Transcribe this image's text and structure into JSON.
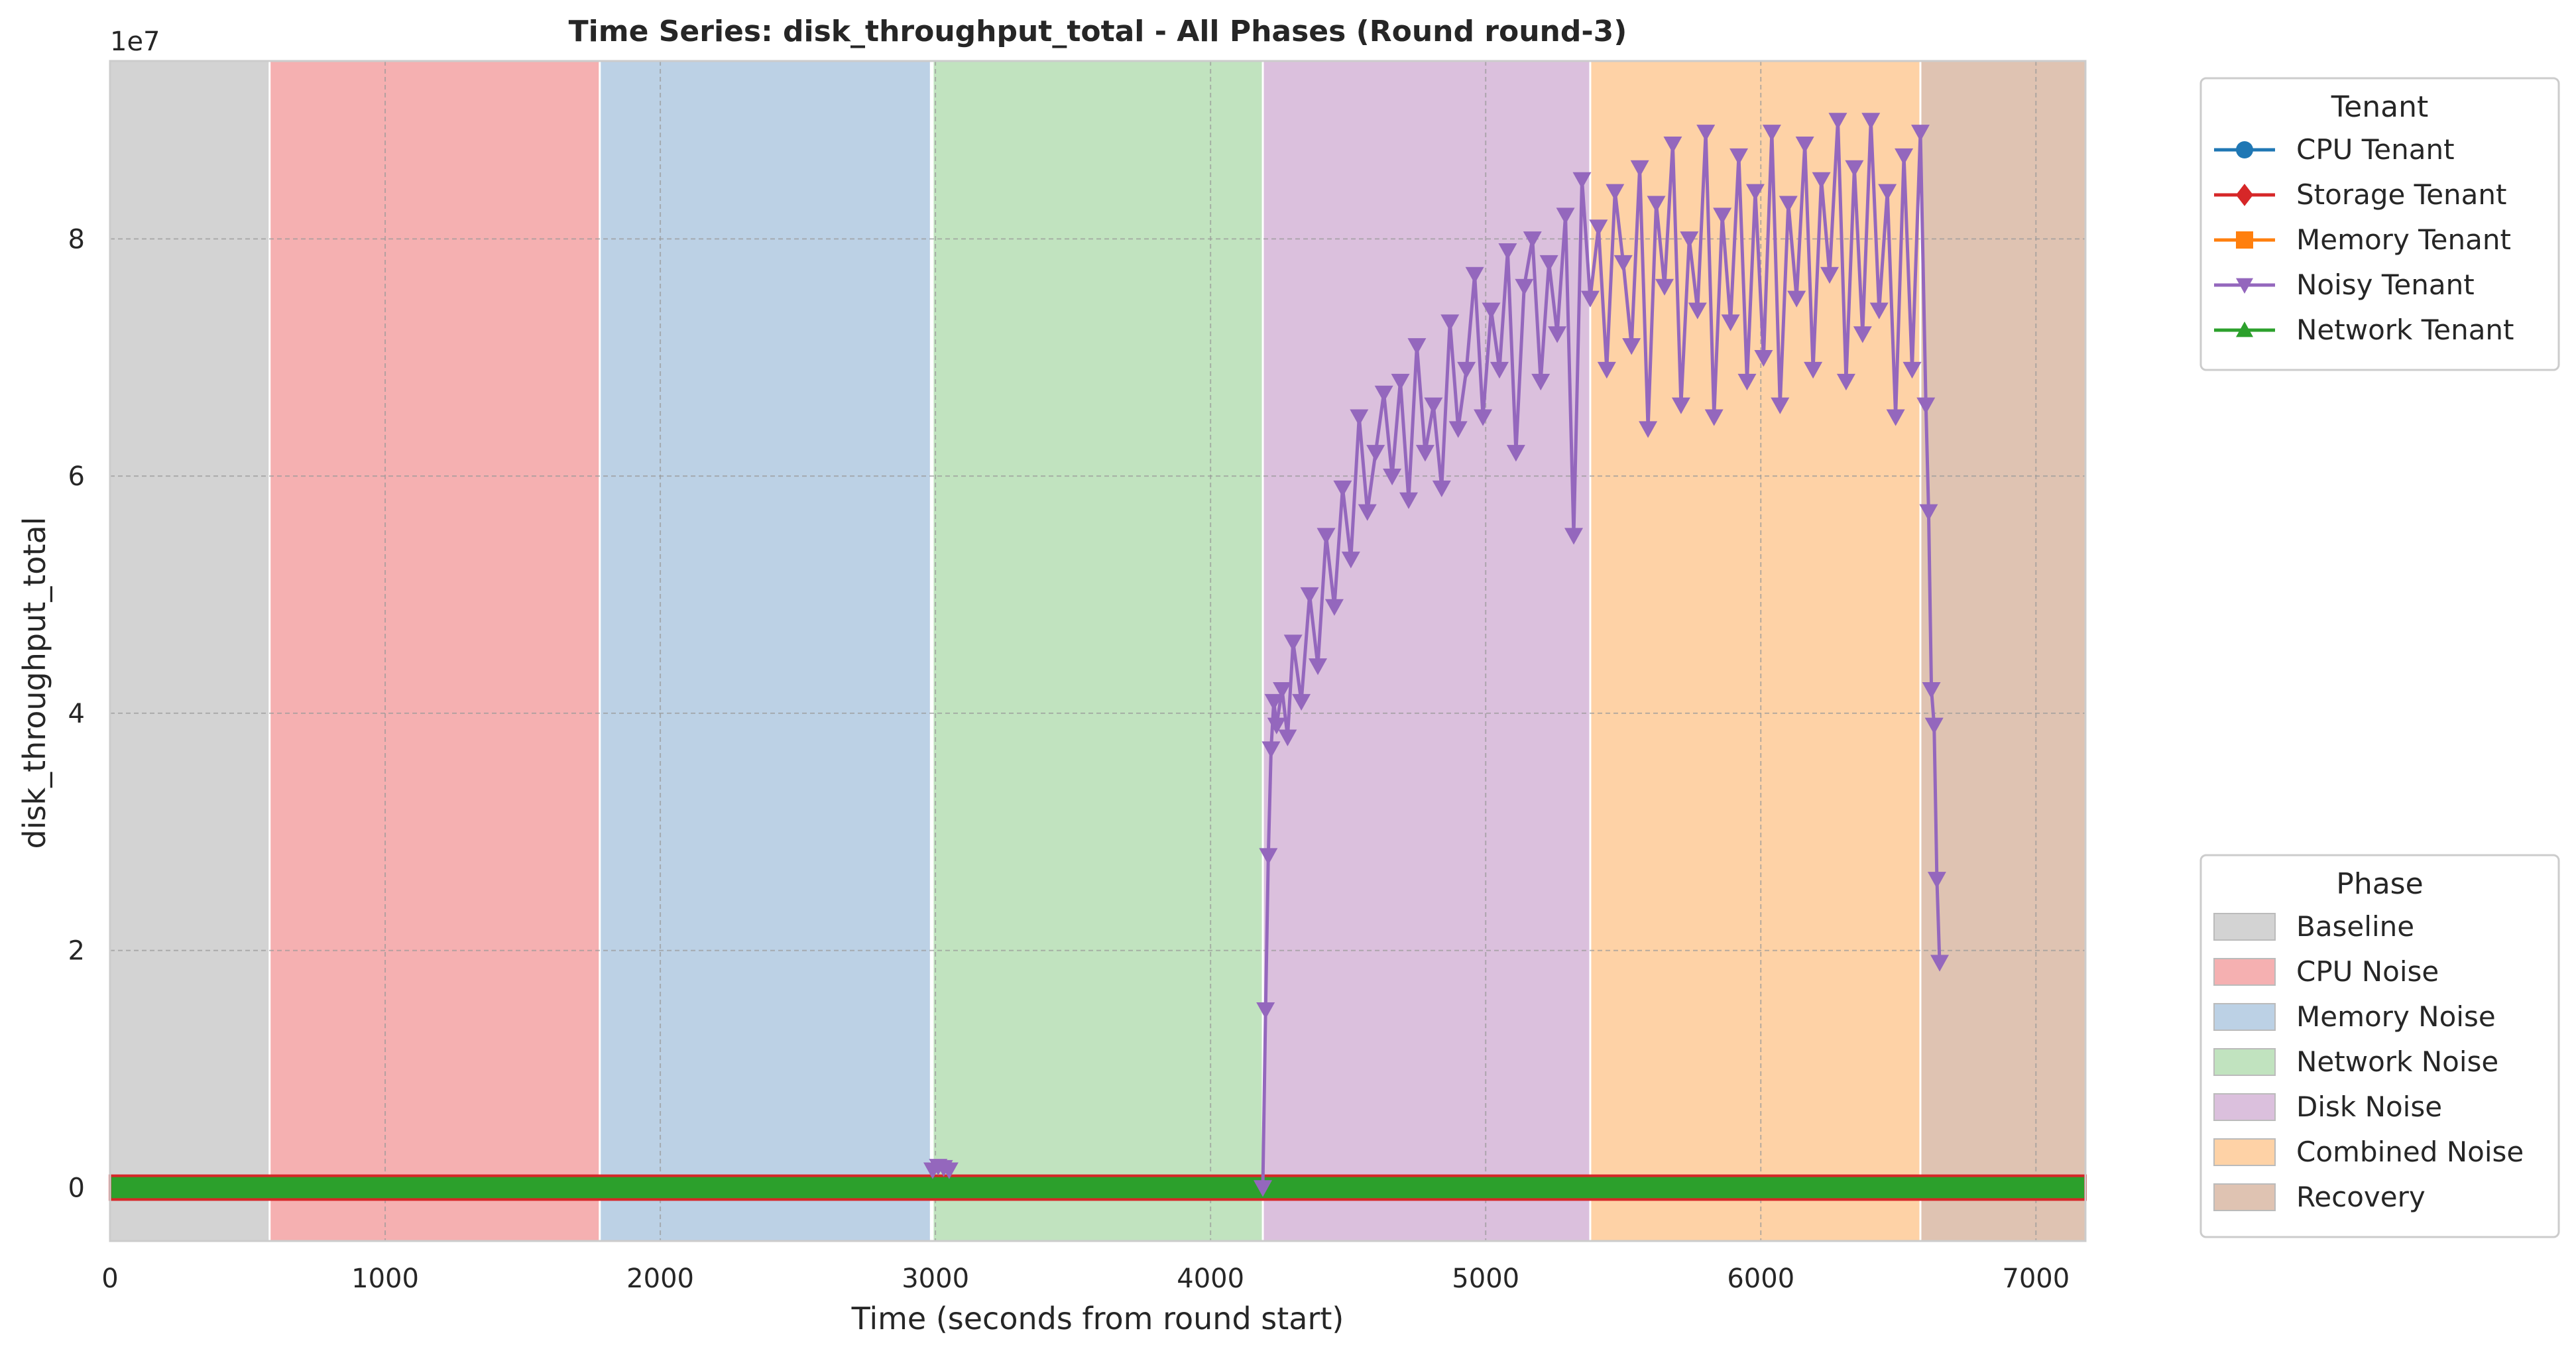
{
  "chart_data": {
    "type": "line",
    "title": "Time Series: disk_throughput_total - All Phases (Round round-3)",
    "xlabel": "Time (seconds from round start)",
    "ylabel": "disk_throughput_total",
    "y_scale_label": "1e7",
    "xlim": [
      0,
      7180
    ],
    "ylim": [
      -0.45,
      9.5
    ],
    "y_unit_multiplier": 10000000,
    "x_ticks": [
      0,
      1000,
      2000,
      3000,
      4000,
      5000,
      6000,
      7000
    ],
    "x_tick_labels": [
      "0",
      "1000",
      "2000",
      "3000",
      "4000",
      "5000",
      "6000",
      "7000"
    ],
    "y_ticks": [
      0,
      2,
      4,
      6,
      8
    ],
    "y_tick_labels": [
      "0",
      "2",
      "4",
      "6",
      "8"
    ],
    "grid": true,
    "phases": [
      {
        "name": "Baseline",
        "start": 0,
        "end": 580,
        "color": "#d3d3d3"
      },
      {
        "name": "CPU Noise",
        "start": 580,
        "end": 1780,
        "color": "#f5b0b1"
      },
      {
        "name": "Memory Noise",
        "start": 1780,
        "end": 2980,
        "color": "#bcd1e5"
      },
      {
        "name": "Network Noise",
        "start": 2990,
        "end": 4190,
        "color": "#c1e3bf"
      },
      {
        "name": "Disk Noise",
        "start": 4190,
        "end": 5380,
        "color": "#dbc0dd"
      },
      {
        "name": "Combined Noise",
        "start": 5380,
        "end": 6580,
        "color": "#fed2a6"
      },
      {
        "name": "Recovery",
        "start": 6580,
        "end": 7180,
        "color": "#dfc3b2"
      }
    ],
    "tenant_legend": {
      "title": "Tenant",
      "placement": "upper-right-outside",
      "entries": [
        {
          "name": "CPU Tenant",
          "color": "#1f77b4",
          "marker": "circle"
        },
        {
          "name": "Storage Tenant",
          "color": "#d62728",
          "marker": "diamond"
        },
        {
          "name": "Memory Tenant",
          "color": "#ff7f0e",
          "marker": "square"
        },
        {
          "name": "Noisy Tenant",
          "color": "#9467bd",
          "marker": "triangle-down"
        },
        {
          "name": "Network Tenant",
          "color": "#2ca02c",
          "marker": "triangle-up"
        }
      ]
    },
    "phase_legend": {
      "title": "Phase",
      "placement": "lower-right-outside",
      "entries": [
        "Baseline",
        "CPU Noise",
        "Memory Noise",
        "Network Noise",
        "Disk Noise",
        "Combined Noise",
        "Recovery"
      ]
    },
    "series": [
      {
        "name": "Noisy Tenant",
        "color": "#9467bd",
        "marker": "triangle-down",
        "x": [
          2990,
          3010,
          3030,
          3050,
          4190,
          4200,
          4210,
          4220,
          4230,
          4240,
          4260,
          4280,
          4300,
          4330,
          4360,
          4390,
          4420,
          4450,
          4480,
          4510,
          4540,
          4570,
          4600,
          4630,
          4660,
          4690,
          4720,
          4750,
          4780,
          4810,
          4840,
          4870,
          4900,
          4930,
          4960,
          4990,
          5020,
          5050,
          5080,
          5110,
          5140,
          5170,
          5200,
          5230,
          5260,
          5290,
          5320,
          5350,
          5380,
          5410,
          5440,
          5470,
          5500,
          5530,
          5560,
          5590,
          5620,
          5650,
          5680,
          5710,
          5740,
          5770,
          5800,
          5830,
          5860,
          5890,
          5920,
          5950,
          5980,
          6010,
          6040,
          6070,
          6100,
          6130,
          6160,
          6190,
          6220,
          6250,
          6280,
          6310,
          6340,
          6370,
          6400,
          6430,
          6460,
          6490,
          6520,
          6550,
          6580,
          6600,
          6610,
          6620,
          6630,
          6640,
          6650
        ],
        "y": [
          0.15,
          0.18,
          0.17,
          0.15,
          0.0,
          1.5,
          2.8,
          3.7,
          4.1,
          3.9,
          4.2,
          3.8,
          4.6,
          4.1,
          5.0,
          4.4,
          5.5,
          4.9,
          5.9,
          5.3,
          6.5,
          5.7,
          6.2,
          6.7,
          6.0,
          6.8,
          5.8,
          7.1,
          6.2,
          6.6,
          5.9,
          7.3,
          6.4,
          6.9,
          7.7,
          6.5,
          7.4,
          6.9,
          7.9,
          6.2,
          7.6,
          8.0,
          6.8,
          7.8,
          7.2,
          8.2,
          5.5,
          8.5,
          7.5,
          8.1,
          6.9,
          8.4,
          7.8,
          7.1,
          8.6,
          6.4,
          8.3,
          7.6,
          8.8,
          6.6,
          8.0,
          7.4,
          8.9,
          6.5,
          8.2,
          7.3,
          8.7,
          6.8,
          8.4,
          7.0,
          8.9,
          6.6,
          8.3,
          7.5,
          8.8,
          6.9,
          8.5,
          7.7,
          9.0,
          6.8,
          8.6,
          7.2,
          9.0,
          7.4,
          8.4,
          6.5,
          8.7,
          6.9,
          8.9,
          6.6,
          5.7,
          4.2,
          3.9,
          2.6,
          1.9
        ]
      },
      {
        "name": "Network Tenant",
        "color": "#2ca02c",
        "marker": "triangle-up",
        "x": [
          0,
          7180
        ],
        "y": [
          0,
          0
        ]
      },
      {
        "name": "Storage Tenant",
        "color": "#d62728",
        "marker": "diamond",
        "x": [
          0,
          7180
        ],
        "y": [
          0.1,
          0.1
        ]
      }
    ]
  }
}
